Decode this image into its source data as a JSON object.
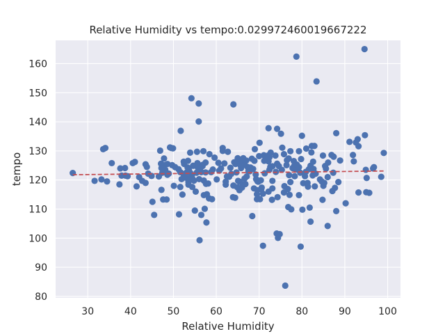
{
  "chart_data": {
    "type": "scatter",
    "title": "Relative Humidity vs tempo:0.029972460019667222",
    "xlabel": "Relative Humidity",
    "ylabel": "tempo",
    "xlim": [
      22.5,
      103.0
    ],
    "ylim": [
      79.5,
      168.0
    ],
    "xticks": [
      "30",
      "40",
      "50",
      "60",
      "70",
      "80",
      "90",
      "100"
    ],
    "yticks": [
      "80",
      "90",
      "100",
      "110",
      "120",
      "130",
      "140",
      "150",
      "160"
    ],
    "grid": true,
    "background": "#eaeaf2",
    "point_color": "#4c72b0",
    "trend_color": "#c44e52",
    "trend_line": {
      "x": [
        26.5,
        99.5
      ],
      "y": [
        121.8,
        123.1
      ]
    },
    "points": [
      [
        26.5,
        122.4
      ],
      [
        31.6,
        119.7
      ],
      [
        33.2,
        120.2
      ],
      [
        33.6,
        130.6
      ],
      [
        34.1,
        131.0
      ],
      [
        34.5,
        119.5
      ],
      [
        35.6,
        125.8
      ],
      [
        37.4,
        118.5
      ],
      [
        37.6,
        124.0
      ],
      [
        37.9,
        121.5
      ],
      [
        38.7,
        124.1
      ],
      [
        38.8,
        121.5
      ],
      [
        39.3,
        121.3
      ],
      [
        40.5,
        125.8
      ],
      [
        41.0,
        126.2
      ],
      [
        41.4,
        117.8
      ],
      [
        42.0,
        121.0
      ],
      [
        42.7,
        119.7
      ],
      [
        43.5,
        125.4
      ],
      [
        43.5,
        119.0
      ],
      [
        43.8,
        124.5
      ],
      [
        44.1,
        122.2
      ],
      [
        44.9,
        121.4
      ],
      [
        45.1,
        112.5
      ],
      [
        45.5,
        108.0
      ],
      [
        46.6,
        121.2
      ],
      [
        46.9,
        130.1
      ],
      [
        47.1,
        125.6
      ],
      [
        47.2,
        124.1
      ],
      [
        47.2,
        116.6
      ],
      [
        47.4,
        122.5
      ],
      [
        47.6,
        113.3
      ],
      [
        47.8,
        127.4
      ],
      [
        47.9,
        125.1
      ],
      [
        48.1,
        123.5
      ],
      [
        48.4,
        113.3
      ],
      [
        48.6,
        121.8
      ],
      [
        48.6,
        125.5
      ],
      [
        48.9,
        122.2
      ],
      [
        49.2,
        131.2
      ],
      [
        49.5,
        131.0
      ],
      [
        49.7,
        125.1
      ],
      [
        49.9,
        130.9
      ],
      [
        50.1,
        118.0
      ],
      [
        50.4,
        124.4
      ],
      [
        51.2,
        123.7
      ],
      [
        51.3,
        108.2
      ],
      [
        51.6,
        117.6
      ],
      [
        51.6,
        122.7
      ],
      [
        51.7,
        136.9
      ],
      [
        51.9,
        120.3
      ],
      [
        52.1,
        115.0
      ],
      [
        52.3,
        122.1
      ],
      [
        52.4,
        126.3
      ],
      [
        52.5,
        125.5
      ],
      [
        52.6,
        121.8
      ],
      [
        52.8,
        120.8
      ],
      [
        53.1,
        122.6
      ],
      [
        53.3,
        124.3
      ],
      [
        53.4,
        126.6
      ],
      [
        53.5,
        119.3
      ],
      [
        53.5,
        118.4
      ],
      [
        53.6,
        123.5
      ],
      [
        53.8,
        120.7
      ],
      [
        53.9,
        129.4
      ],
      [
        53.9,
        122.5
      ],
      [
        54.2,
        148.1
      ],
      [
        54.3,
        121.6
      ],
      [
        54.4,
        117.6
      ],
      [
        54.5,
        120.3
      ],
      [
        54.6,
        124.9
      ],
      [
        54.6,
        124.9
      ],
      [
        54.8,
        119.8
      ],
      [
        55.0,
        109.5
      ],
      [
        55.2,
        116.0
      ],
      [
        55.4,
        122.5
      ],
      [
        55.5,
        129.7
      ],
      [
        55.6,
        125.8
      ],
      [
        55.7,
        124.3
      ],
      [
        55.9,
        140.1
      ],
      [
        55.9,
        146.3
      ],
      [
        56.0,
        120.3
      ],
      [
        56.1,
        99.3
      ],
      [
        56.3,
        123.1
      ],
      [
        56.5,
        108.0
      ],
      [
        56.5,
        122.7
      ],
      [
        56.8,
        125.2
      ],
      [
        56.8,
        124.8
      ],
      [
        57.0,
        129.9
      ],
      [
        57.1,
        119.8
      ],
      [
        57.1,
        114.8
      ],
      [
        57.3,
        110.1
      ],
      [
        57.5,
        126.0
      ],
      [
        57.5,
        122.6
      ],
      [
        57.6,
        118.7
      ],
      [
        57.7,
        105.4
      ],
      [
        57.8,
        115.1
      ],
      [
        58.1,
        118.8
      ],
      [
        58.3,
        113.7
      ],
      [
        58.4,
        128.9
      ],
      [
        58.8,
        122.7
      ],
      [
        59.0,
        113.4
      ],
      [
        59.2,
        123.6
      ],
      [
        59.6,
        127.7
      ],
      [
        60.1,
        120.2
      ],
      [
        60.5,
        125.9
      ],
      [
        60.7,
        123.2
      ],
      [
        61.1,
        124.0
      ],
      [
        61.5,
        131.0
      ],
      [
        61.5,
        130.0
      ],
      [
        61.9,
        125.7
      ],
      [
        62.2,
        118.4
      ],
      [
        62.2,
        119.4
      ],
      [
        62.5,
        121.2
      ],
      [
        62.7,
        129.7
      ],
      [
        63.0,
        121.1
      ],
      [
        63.3,
        124.2
      ],
      [
        63.5,
        122.1
      ],
      [
        63.9,
        114.1
      ],
      [
        64.0,
        146.0
      ],
      [
        64.0,
        118.1
      ],
      [
        64.2,
        126.1
      ],
      [
        64.4,
        113.9
      ],
      [
        64.5,
        125.5
      ],
      [
        64.7,
        122.6
      ],
      [
        64.9,
        117.5
      ],
      [
        65.0,
        127.5
      ],
      [
        65.1,
        119.7
      ],
      [
        65.3,
        126.3
      ],
      [
        65.4,
        116.5
      ],
      [
        65.5,
        119.4
      ],
      [
        65.6,
        125.2
      ],
      [
        65.8,
        124.1
      ],
      [
        66.0,
        117.4
      ],
      [
        66.0,
        126.4
      ],
      [
        66.2,
        118.4
      ],
      [
        66.3,
        127.5
      ],
      [
        66.6,
        120.5
      ],
      [
        66.6,
        125.2
      ],
      [
        66.8,
        118.6
      ],
      [
        67.0,
        126.7
      ],
      [
        67.1,
        121.2
      ],
      [
        67.3,
        124.5
      ],
      [
        67.5,
        123.1
      ],
      [
        67.8,
        123.0
      ],
      [
        68.0,
        124.3
      ],
      [
        68.3,
        127.3
      ],
      [
        68.4,
        107.6
      ],
      [
        68.6,
        123.8
      ],
      [
        68.8,
        117.1
      ],
      [
        68.9,
        126.6
      ],
      [
        69.0,
        130.6
      ],
      [
        69.2,
        121.9
      ],
      [
        69.3,
        120.3
      ],
      [
        69.5,
        113.4
      ],
      [
        69.5,
        115.1
      ],
      [
        69.6,
        119.6
      ],
      [
        69.6,
        116.5
      ],
      [
        69.8,
        119.4
      ],
      [
        70.0,
        128.2
      ],
      [
        70.1,
        132.8
      ],
      [
        70.2,
        113.4
      ],
      [
        70.4,
        119.9
      ],
      [
        70.5,
        116.9
      ],
      [
        70.6,
        117.4
      ],
      [
        70.9,
        97.4
      ],
      [
        70.9,
        115.3
      ],
      [
        71.1,
        128.5
      ],
      [
        71.2,
        126.6
      ],
      [
        71.3,
        122.3
      ],
      [
        71.6,
        128.1
      ],
      [
        72.2,
        128.5
      ],
      [
        72.2,
        126.4
      ],
      [
        72.2,
        116.0
      ],
      [
        72.2,
        137.8
      ],
      [
        72.4,
        123.5
      ],
      [
        72.4,
        127.8
      ],
      [
        72.6,
        124.5
      ],
      [
        72.7,
        129.4
      ],
      [
        73.0,
        113.2
      ],
      [
        73.1,
        119.7
      ],
      [
        73.1,
        117.1
      ],
      [
        73.1,
        124.7
      ],
      [
        73.8,
        128.4
      ],
      [
        73.9,
        122.8
      ],
      [
        74.1,
        101.6
      ],
      [
        74.2,
        137.6
      ],
      [
        74.2,
        125.6
      ],
      [
        74.3,
        114.1
      ],
      [
        74.4,
        100.1
      ],
      [
        74.6,
        124.8
      ],
      [
        74.8,
        101.4
      ],
      [
        75.1,
        135.9
      ],
      [
        75.3,
        123.5
      ],
      [
        75.4,
        131.1
      ],
      [
        75.8,
        128.9
      ],
      [
        75.8,
        115.7
      ],
      [
        75.9,
        117.9
      ],
      [
        76.1,
        83.7
      ],
      [
        76.4,
        125.1
      ],
      [
        76.5,
        126.8
      ],
      [
        76.7,
        116.9
      ],
      [
        76.8,
        110.7
      ],
      [
        76.9,
        127.4
      ],
      [
        77.0,
        121.7
      ],
      [
        77.1,
        114.9
      ],
      [
        77.3,
        119.3
      ],
      [
        77.3,
        129.9
      ],
      [
        77.5,
        109.9
      ],
      [
        77.8,
        124.1
      ],
      [
        78.1,
        126.5
      ],
      [
        78.2,
        124.9
      ],
      [
        78.3,
        121.3
      ],
      [
        78.6,
        123.6
      ],
      [
        78.7,
        162.4
      ],
      [
        78.8,
        125.3
      ],
      [
        79.3,
        129.9
      ],
      [
        79.3,
        114.8
      ],
      [
        79.3,
        124.4
      ],
      [
        79.6,
        122.5
      ],
      [
        79.7,
        97.1
      ],
      [
        79.8,
        127.2
      ],
      [
        80.0,
        135.2
      ],
      [
        80.1,
        109.8
      ],
      [
        80.3,
        118.9
      ],
      [
        80.7,
        121.3
      ],
      [
        80.9,
        122.8
      ],
      [
        81.0,
        130.8
      ],
      [
        81.3,
        119.0
      ],
      [
        81.4,
        117.7
      ],
      [
        81.6,
        123.7
      ],
      [
        81.8,
        110.5
      ],
      [
        82.0,
        124.9
      ],
      [
        82.0,
        105.7
      ],
      [
        82.2,
        129.5
      ],
      [
        82.3,
        131.7
      ],
      [
        82.5,
        121.6
      ],
      [
        82.6,
        126.3
      ],
      [
        82.7,
        123.8
      ],
      [
        82.9,
        131.7
      ],
      [
        83.0,
        117.8
      ],
      [
        83.2,
        122.2
      ],
      [
        83.4,
        153.9
      ],
      [
        84.2,
        120.2
      ],
      [
        84.6,
        119.5
      ],
      [
        84.8,
        113.2
      ],
      [
        84.9,
        128.4
      ],
      [
        85.0,
        118.0
      ],
      [
        85.2,
        119.0
      ],
      [
        85.4,
        124.8
      ],
      [
        85.6,
        123.9
      ],
      [
        86.0,
        104.2
      ],
      [
        86.0,
        121.0
      ],
      [
        86.1,
        126.0
      ],
      [
        86.9,
        128.6
      ],
      [
        87.1,
        116.2
      ],
      [
        87.3,
        122.5
      ],
      [
        87.4,
        128.0
      ],
      [
        87.7,
        117.3
      ],
      [
        88.0,
        109.3
      ],
      [
        88.0,
        136.1
      ],
      [
        88.5,
        119.3
      ],
      [
        88.9,
        126.7
      ],
      [
        90.2,
        112.0
      ],
      [
        91.1,
        133.1
      ],
      [
        91.9,
        128.6
      ],
      [
        92.1,
        126.4
      ],
      [
        92.6,
        132.9
      ],
      [
        93.0,
        134.0
      ],
      [
        93.2,
        131.6
      ],
      [
        93.2,
        115.7
      ],
      [
        94.6,
        165.0
      ],
      [
        94.7,
        135.4
      ],
      [
        94.9,
        123.5
      ],
      [
        95.0,
        115.8
      ],
      [
        95.1,
        120.7
      ],
      [
        95.7,
        115.6
      ],
      [
        96.6,
        124.0
      ],
      [
        96.8,
        124.4
      ],
      [
        98.5,
        121.1
      ],
      [
        99.1,
        129.3
      ]
    ]
  }
}
